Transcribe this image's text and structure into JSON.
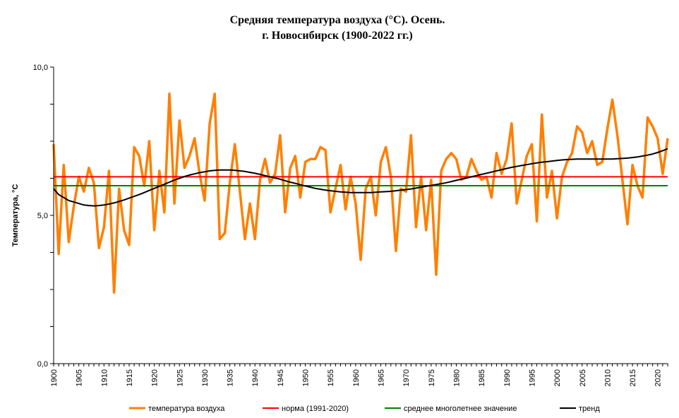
{
  "chart_data": {
    "type": "line",
    "title": "Средняя температура воздуха (°С). Осень.",
    "subtitle": "г. Новосибирск (1900-2022 гг.)",
    "ylabel": "Температура, °С",
    "xlabel": "",
    "ylim": [
      0,
      10
    ],
    "y_ticks": [
      "0,0",
      "5,0",
      "10,0"
    ],
    "xlim": [
      1900,
      2022
    ],
    "x_tick_step": 5,
    "grid": false,
    "legend_position": "bottom",
    "x": [
      1900,
      1901,
      1902,
      1903,
      1904,
      1905,
      1906,
      1907,
      1908,
      1909,
      1910,
      1911,
      1912,
      1913,
      1914,
      1915,
      1916,
      1917,
      1918,
      1919,
      1920,
      1921,
      1922,
      1923,
      1924,
      1925,
      1926,
      1927,
      1928,
      1929,
      1930,
      1931,
      1932,
      1933,
      1934,
      1935,
      1936,
      1937,
      1938,
      1939,
      1940,
      1941,
      1942,
      1943,
      1944,
      1945,
      1946,
      1947,
      1948,
      1949,
      1950,
      1951,
      1952,
      1953,
      1954,
      1955,
      1956,
      1957,
      1958,
      1959,
      1960,
      1961,
      1962,
      1963,
      1964,
      1965,
      1966,
      1967,
      1968,
      1969,
      1970,
      1971,
      1972,
      1973,
      1974,
      1975,
      1976,
      1977,
      1978,
      1979,
      1980,
      1981,
      1982,
      1983,
      1984,
      1985,
      1986,
      1987,
      1988,
      1989,
      1990,
      1991,
      1992,
      1993,
      1994,
      1995,
      1996,
      1997,
      1998,
      1999,
      2000,
      2001,
      2002,
      2003,
      2004,
      2005,
      2006,
      2007,
      2008,
      2009,
      2010,
      2011,
      2012,
      2013,
      2014,
      2015,
      2016,
      2017,
      2018,
      2019,
      2020,
      2021,
      2022
    ],
    "series": [
      {
        "name": "температура воздуха",
        "color": "#ff7f00",
        "values": [
          7.4,
          3.7,
          6.7,
          4.1,
          5.3,
          6.3,
          5.8,
          6.6,
          6.1,
          3.9,
          4.6,
          6.5,
          2.4,
          5.9,
          4.5,
          4.0,
          7.3,
          7.0,
          6.0,
          7.5,
          4.5,
          6.5,
          5.1,
          9.1,
          5.4,
          8.2,
          6.6,
          7.0,
          7.6,
          6.4,
          5.5,
          8.1,
          9.1,
          4.2,
          4.4,
          6.1,
          7.4,
          5.8,
          4.2,
          5.4,
          4.2,
          6.2,
          6.9,
          6.1,
          6.4,
          7.7,
          5.1,
          6.6,
          7.0,
          5.6,
          6.8,
          6.9,
          6.9,
          7.3,
          7.2,
          5.1,
          5.9,
          6.7,
          5.2,
          6.3,
          5.4,
          3.5,
          5.9,
          6.3,
          5.0,
          6.8,
          7.3,
          6.3,
          3.8,
          5.9,
          5.8,
          7.7,
          4.6,
          6.3,
          4.5,
          6.2,
          3.0,
          6.5,
          6.9,
          7.1,
          6.9,
          6.2,
          6.3,
          6.9,
          6.5,
          6.2,
          6.3,
          5.6,
          7.1,
          6.4,
          6.9,
          8.1,
          5.4,
          6.2,
          7.0,
          7.4,
          4.8,
          8.4,
          5.6,
          6.5,
          4.9,
          6.3,
          6.8,
          7.1,
          8.0,
          7.8,
          7.1,
          7.5,
          6.7,
          6.8,
          7.9,
          8.9,
          7.7,
          6.2,
          4.7,
          6.7,
          6.0,
          5.6,
          8.3,
          8.0,
          7.6,
          6.4,
          7.6
        ]
      },
      {
        "name": "норма (1991-2020)",
        "color": "#ff0000",
        "constant": 6.3
      },
      {
        "name": "среднее многолетнее значение",
        "color": "#008000",
        "constant": 6.0
      },
      {
        "name": "тренд",
        "color": "#000000",
        "values": [
          5.9,
          5.7,
          5.6,
          5.5,
          5.45,
          5.4,
          5.35,
          5.33,
          5.32,
          5.33,
          5.35,
          5.38,
          5.42,
          5.47,
          5.52,
          5.58,
          5.64,
          5.7,
          5.77,
          5.84,
          5.91,
          5.98,
          6.05,
          6.12,
          6.19,
          6.25,
          6.31,
          6.36,
          6.4,
          6.44,
          6.47,
          6.5,
          6.52,
          6.53,
          6.53,
          6.53,
          6.52,
          6.5,
          6.48,
          6.45,
          6.42,
          6.38,
          6.34,
          6.3,
          6.26,
          6.22,
          6.17,
          6.12,
          6.08,
          6.03,
          5.99,
          5.95,
          5.91,
          5.88,
          5.85,
          5.83,
          5.81,
          5.79,
          5.78,
          5.77,
          5.77,
          5.77,
          5.77,
          5.77,
          5.78,
          5.79,
          5.8,
          5.81,
          5.83,
          5.85,
          5.87,
          5.89,
          5.92,
          5.95,
          5.98,
          6.01,
          6.04,
          6.07,
          6.1,
          6.14,
          6.18,
          6.22,
          6.26,
          6.3,
          6.34,
          6.38,
          6.42,
          6.46,
          6.5,
          6.54,
          6.58,
          6.62,
          6.65,
          6.68,
          6.71,
          6.74,
          6.77,
          6.79,
          6.81,
          6.83,
          6.85,
          6.87,
          6.88,
          6.89,
          6.9,
          6.9,
          6.9,
          6.9,
          6.9,
          6.9,
          6.9,
          6.9,
          6.91,
          6.92,
          6.93,
          6.95,
          6.97,
          7.0,
          7.03,
          7.07,
          7.12,
          7.18,
          7.25
        ]
      }
    ]
  }
}
